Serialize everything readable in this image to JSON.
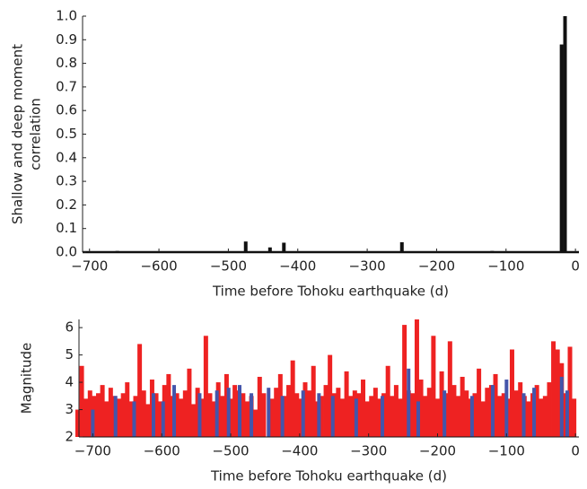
{
  "chart_data": [
    {
      "type": "bar",
      "ylabel": [
        "Shallow and deep moment",
        "correlation"
      ],
      "xlabel": "Time before Tohoku earthquake (d)",
      "xlim": [
        -710,
        5
      ],
      "ylim": [
        0,
        1
      ],
      "xticks": [
        {
          "value": -700,
          "label": "−700"
        },
        {
          "value": -600,
          "label": "−600"
        },
        {
          "value": -500,
          "label": "−500"
        },
        {
          "value": -400,
          "label": "−400"
        },
        {
          "value": -300,
          "label": "−300"
        },
        {
          "value": -200,
          "label": "−200"
        },
        {
          "value": -100,
          "label": "−100"
        },
        0
      ],
      "yticks": [
        {
          "value": 0,
          "label": "0.0"
        },
        0.1,
        0.2,
        0.3,
        0.4,
        0.5,
        0.6,
        0.7,
        0.8,
        0.9,
        {
          "value": 1,
          "label": "1.0"
        }
      ],
      "series": [
        {
          "color": "#111111",
          "x": [
            -660,
            -475,
            -440,
            -420,
            -250,
            -120,
            -100,
            -60,
            -20,
            -15
          ],
          "values": [
            0.005,
            0.045,
            0.02,
            0.04,
            0.042,
            0.005,
            0.004,
            0.003,
            0.88,
            1.0
          ]
        }
      ]
    },
    {
      "type": "bar",
      "ylabel": "Magnitude",
      "xlabel": "Time before Tohoku earthquake (d)",
      "xlim": [
        -720,
        5
      ],
      "ylim": [
        2,
        6.3
      ],
      "xticks": [
        {
          "value": -700,
          "label": "−700"
        },
        {
          "value": -600,
          "label": "−600"
        },
        {
          "value": -500,
          "label": "−500"
        },
        {
          "value": -400,
          "label": "−400"
        },
        {
          "value": -300,
          "label": "−300"
        },
        {
          "value": -200,
          "label": "−200"
        },
        {
          "value": -100,
          "label": "−100"
        },
        0
      ],
      "yticks": [
        2,
        3,
        4,
        5,
        6
      ],
      "series": [
        {
          "color": "#ee2222",
          "x": [
            -722,
            -716,
            -710,
            -704,
            -698,
            -692,
            -686,
            -680,
            -674,
            -668,
            -662,
            -656,
            -650,
            -644,
            -638,
            -632,
            -626,
            -620,
            -614,
            -608,
            -602,
            -596,
            -590,
            -584,
            -578,
            -572,
            -566,
            -560,
            -554,
            -548,
            -542,
            -536,
            -530,
            -524,
            -518,
            -512,
            -506,
            -500,
            -494,
            -488,
            -482,
            -476,
            -470,
            -464,
            -458,
            -452,
            -446,
            -440,
            -434,
            -428,
            -422,
            -416,
            -410,
            -404,
            -398,
            -392,
            -386,
            -380,
            -374,
            -368,
            -362,
            -356,
            -350,
            -344,
            -338,
            -332,
            -326,
            -320,
            -314,
            -308,
            -302,
            -296,
            -290,
            -284,
            -278,
            -272,
            -266,
            -260,
            -254,
            -248,
            -242,
            -236,
            -230,
            -224,
            -218,
            -212,
            -206,
            -200,
            -194,
            -188,
            -182,
            -176,
            -170,
            -164,
            -158,
            -152,
            -146,
            -140,
            -134,
            -128,
            -122,
            -116,
            -110,
            -104,
            -98,
            -92,
            -86,
            -80,
            -74,
            -68,
            -62,
            -56,
            -50,
            -44,
            -38,
            -32,
            -26,
            -20,
            -14,
            -8,
            -2
          ],
          "values": [
            3.0,
            4.6,
            3.4,
            3.7,
            3.5,
            3.6,
            3.9,
            3.3,
            3.8,
            3.5,
            3.4,
            3.6,
            4.0,
            3.3,
            3.5,
            5.4,
            3.7,
            3.2,
            4.1,
            3.6,
            3.3,
            3.9,
            4.3,
            3.5,
            3.6,
            3.4,
            3.7,
            4.5,
            3.2,
            3.8,
            3.4,
            5.7,
            3.6,
            3.3,
            4.0,
            3.5,
            4.3,
            3.4,
            3.9,
            3.7,
            3.6,
            3.3,
            3.5,
            3.0,
            4.2,
            3.6,
            2.0,
            3.4,
            3.8,
            4.3,
            3.5,
            3.9,
            4.8,
            3.6,
            3.4,
            4.0,
            3.7,
            4.6,
            3.3,
            3.5,
            3.9,
            5.0,
            3.6,
            3.8,
            3.4,
            4.4,
            3.5,
            3.7,
            3.6,
            4.1,
            3.3,
            3.5,
            3.8,
            3.4,
            3.6,
            4.6,
            3.5,
            3.9,
            3.4,
            6.1,
            3.7,
            3.6,
            6.3,
            4.1,
            3.5,
            3.8,
            5.7,
            3.4,
            4.4,
            3.6,
            5.5,
            3.9,
            3.5,
            4.2,
            3.7,
            3.4,
            3.6,
            4.5,
            3.3,
            3.8,
            3.9,
            4.3,
            3.5,
            3.6,
            3.4,
            5.2,
            3.7,
            4.0,
            3.5,
            3.3,
            3.6,
            3.9,
            3.4,
            3.5,
            4.0,
            5.5,
            5.2,
            4.7,
            3.6,
            5.3,
            3.4
          ]
        },
        {
          "color": "#4455aa",
          "x": [
            -700,
            -667,
            -640,
            -612,
            -598,
            -582,
            -545,
            -520,
            -503,
            -487,
            -470,
            -445,
            -425,
            -395,
            -372,
            -352,
            -318,
            -280,
            -242,
            -228,
            -190,
            -150,
            -120,
            -100,
            -75,
            -60,
            -20,
            -12
          ],
          "values": [
            3.0,
            3.5,
            3.3,
            3.6,
            3.3,
            3.9,
            3.6,
            3.7,
            3.8,
            3.9,
            3.6,
            3.8,
            3.5,
            3.7,
            3.6,
            3.5,
            3.4,
            3.5,
            4.5,
            3.3,
            3.7,
            3.5,
            3.9,
            4.1,
            3.6,
            3.8,
            4.2,
            3.7
          ]
        }
      ]
    }
  ]
}
